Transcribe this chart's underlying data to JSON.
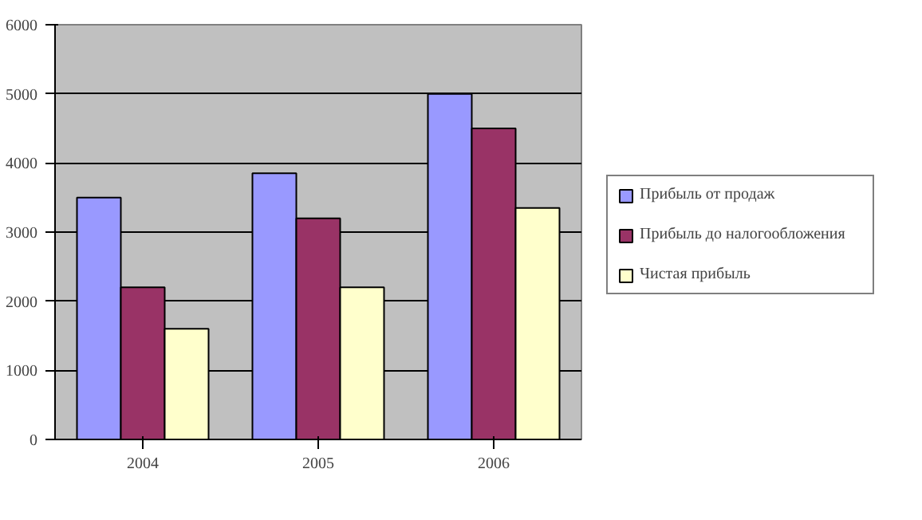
{
  "chart_data": {
    "type": "bar",
    "categories": [
      "2004",
      "2005",
      "2006"
    ],
    "series": [
      {
        "name": "Прибыль от продаж",
        "color": "#9999ff",
        "values": [
          3500,
          3850,
          5000
        ]
      },
      {
        "name": "Прибыль до налогообложения",
        "color": "#993366",
        "values": [
          2200,
          3200,
          4500
        ]
      },
      {
        "name": "Чистая прибыль",
        "color": "#ffffcc",
        "values": [
          1600,
          2200,
          3350
        ]
      }
    ],
    "ylim": [
      0,
      6000
    ],
    "yticks": [
      0,
      1000,
      2000,
      3000,
      4000,
      5000,
      6000
    ],
    "grid": "y",
    "legend": "right"
  }
}
